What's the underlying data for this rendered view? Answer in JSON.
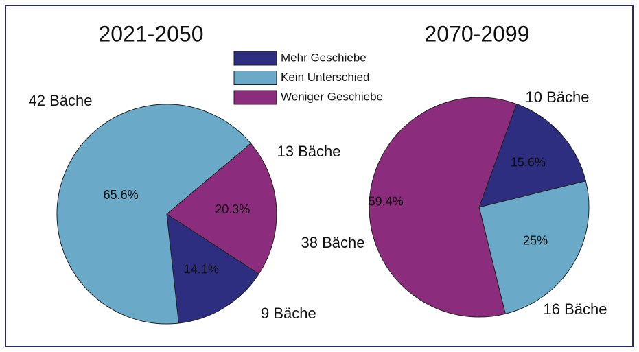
{
  "legend": [
    {
      "name": "Mehr Geschiebe",
      "color": "#2e2e80"
    },
    {
      "name": "Kein Unterschied",
      "color": "#6aaac8"
    },
    {
      "name": "Weniger Geschiebe",
      "color": "#8c2c7c"
    }
  ],
  "chart_data": [
    {
      "type": "pie",
      "title": "2021-2050",
      "values": [
        14.1,
        65.6,
        20.3
      ],
      "value_labels": [
        "14.1%",
        "65.6%",
        "20.3%"
      ],
      "annotations": [
        "9 Bäche",
        "42 Bäche",
        "13 Bäche"
      ]
    },
    {
      "type": "pie",
      "title": "2070-2099",
      "values": [
        15.6,
        25,
        59.4
      ],
      "value_labels": [
        "15.6%",
        "25%",
        "59.4%"
      ],
      "annotations": [
        "10 Bäche",
        "16 Bäche",
        "38 Bäche"
      ]
    }
  ]
}
